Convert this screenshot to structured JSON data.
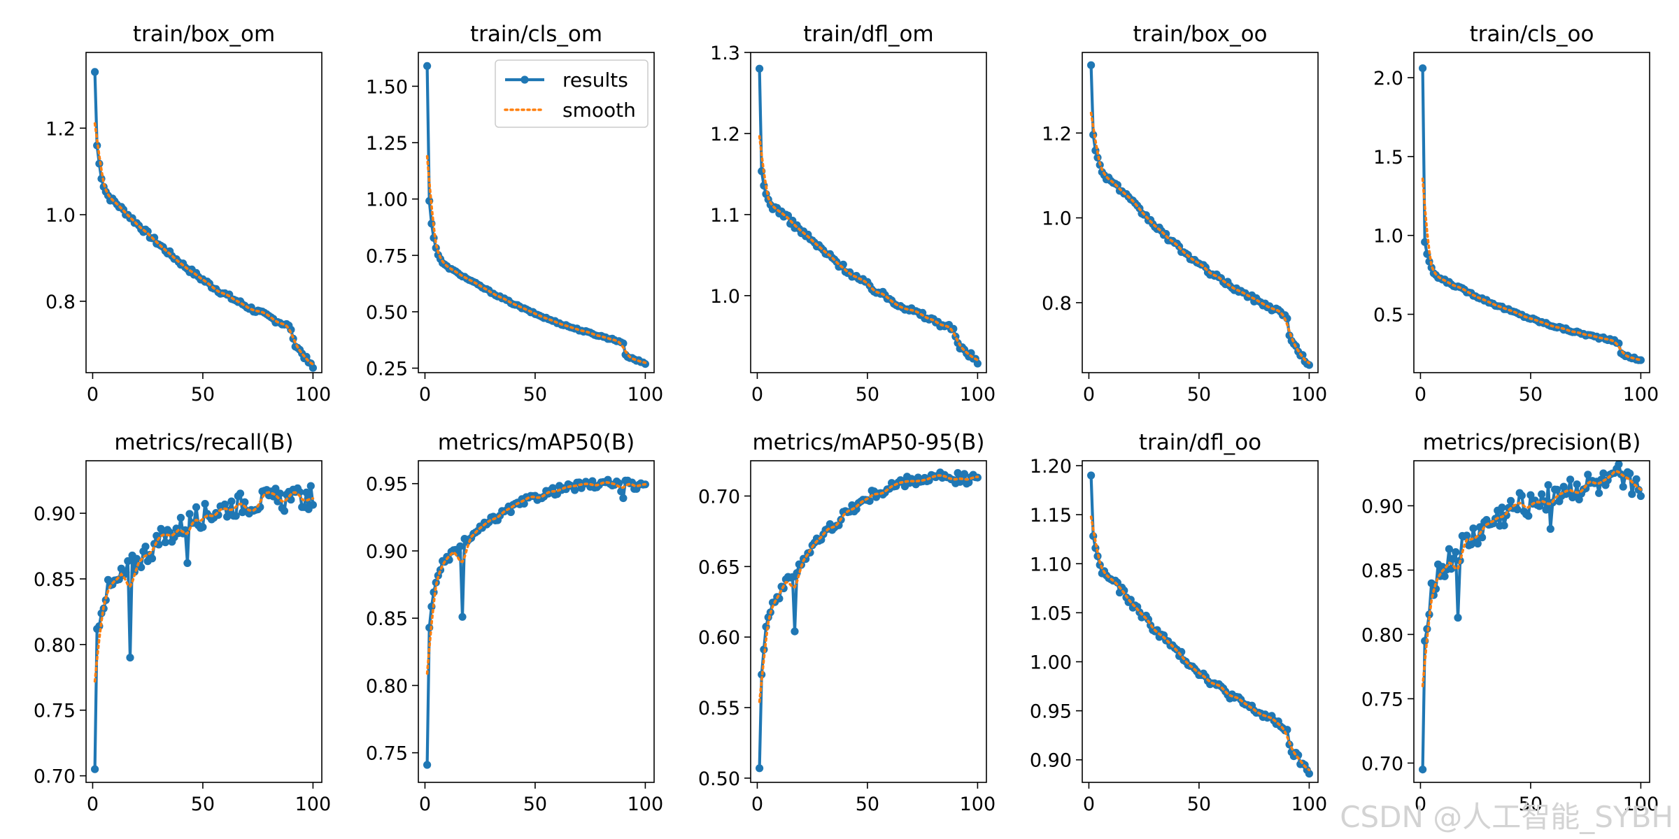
{
  "colors": {
    "results": "#1f77b4",
    "smooth": "#ff7f0e",
    "axes": "#000000",
    "watermark": "#d3d3d3"
  },
  "legend": {
    "results_label": "results",
    "smooth_label": "smooth",
    "placement": "top-right"
  },
  "watermark": "CSDN @人工智能_SYBH",
  "chart_data": [
    {
      "type": "line",
      "title": "train/box_om",
      "xlim": [
        -3,
        104
      ],
      "ylim": [
        0.635,
        1.375
      ],
      "xticks": [
        0,
        50,
        100
      ],
      "yticks": [
        0.8,
        1.0,
        1.2
      ],
      "tick_decimals": 1,
      "start": 1.33,
      "k1": 0.17,
      "tau": 2.5,
      "v10": 1.03,
      "v88": 0.745,
      "v100": 0.645,
      "drop": 0.03,
      "noise": 0.006,
      "series": [
        {
          "name": "results"
        },
        {
          "name": "smooth"
        }
      ]
    },
    {
      "type": "line",
      "title": "train/cls_om",
      "xlim": [
        -3,
        104
      ],
      "ylim": [
        0.23,
        1.65
      ],
      "xticks": [
        0,
        50,
        100
      ],
      "yticks": [
        0.25,
        0.5,
        0.75,
        1.0,
        1.25,
        1.5
      ],
      "tick_decimals": 2,
      "legend": true,
      "start": 1.59,
      "k1": 0.6,
      "tau": 1.0,
      "v10": 0.7,
      "v88": 0.37,
      "v100": 0.27,
      "drop": 0.06,
      "noise": 0.004,
      "series": [
        {
          "name": "results"
        },
        {
          "name": "smooth"
        }
      ]
    },
    {
      "type": "line",
      "title": "train/dfl_om",
      "xlim": [
        -3,
        104
      ],
      "ylim": [
        0.905,
        1.3
      ],
      "xticks": [
        0,
        50,
        100
      ],
      "yticks": [
        1.0,
        1.1,
        1.2,
        1.3
      ],
      "tick_decimals": 1,
      "start": 1.28,
      "k1": 0.13,
      "tau": 1.2,
      "v10": 1.105,
      "v88": 0.96,
      "v100": 0.92,
      "drop": 0.02,
      "noise": 0.004,
      "series": [
        {
          "name": "results"
        },
        {
          "name": "smooth"
        }
      ]
    },
    {
      "type": "line",
      "title": "train/box_oo",
      "xlim": [
        -3,
        104
      ],
      "ylim": [
        0.635,
        1.39
      ],
      "xticks": [
        0,
        50,
        100
      ],
      "yticks": [
        0.8,
        1.0,
        1.2
      ],
      "tick_decimals": 1,
      "start": 1.36,
      "k1": 0.16,
      "tau": 2.0,
      "v10": 1.09,
      "v88": 0.775,
      "v100": 0.65,
      "drop": 0.05,
      "noise": 0.006,
      "series": [
        {
          "name": "results"
        },
        {
          "name": "smooth"
        }
      ]
    },
    {
      "type": "line",
      "title": "train/cls_oo",
      "xlim": [
        -3,
        104
      ],
      "ylim": [
        0.13,
        2.16
      ],
      "xticks": [
        0,
        50,
        100
      ],
      "yticks": [
        0.5,
        1.0,
        1.5,
        2.0
      ],
      "tick_decimals": 1,
      "start": 2.06,
      "k1": 1.1,
      "tau": 1.2,
      "v10": 0.72,
      "v88": 0.33,
      "v100": 0.21,
      "drop": 0.08,
      "noise": 0.008,
      "series": [
        {
          "name": "results"
        },
        {
          "name": "smooth"
        }
      ]
    },
    {
      "type": "line",
      "title": "metrics/recall(B)",
      "xlim": [
        -3,
        104
      ],
      "ylim": [
        0.695,
        0.94
      ],
      "xticks": [
        0,
        50,
        100
      ],
      "yticks": [
        0.7,
        0.75,
        0.8,
        0.85,
        0.9
      ],
      "tick_decimals": 2,
      "start": 0.705,
      "k1": -0.105,
      "tau": 2.5,
      "v10": 0.845,
      "v88": 0.91,
      "v100": 0.912,
      "drop": 0.0,
      "noise": 0.009,
      "dips": [
        {
          "x": 17,
          "y": 0.79
        },
        {
          "x": 43,
          "y": 0.862
        }
      ],
      "series": [
        {
          "name": "results"
        },
        {
          "name": "smooth"
        }
      ]
    },
    {
      "type": "line",
      "title": "metrics/mAP50(B)",
      "xlim": [
        -3,
        104
      ],
      "ylim": [
        0.728,
        0.967
      ],
      "xticks": [
        0,
        50,
        100
      ],
      "yticks": [
        0.75,
        0.8,
        0.85,
        0.9,
        0.95
      ],
      "tick_decimals": 2,
      "start": 0.741,
      "k1": -0.1,
      "tau": 3.0,
      "v10": 0.893,
      "v88": 0.95,
      "v100": 0.947,
      "drop": 0.0,
      "noise": 0.003,
      "dips": [
        {
          "x": 17,
          "y": 0.851
        }
      ],
      "series": [
        {
          "name": "results"
        },
        {
          "name": "smooth"
        }
      ]
    },
    {
      "type": "line",
      "title": "metrics/mAP50-95(B)",
      "xlim": [
        -3,
        104
      ],
      "ylim": [
        0.497,
        0.725
      ],
      "xticks": [
        0,
        50,
        100
      ],
      "yticks": [
        0.5,
        0.55,
        0.6,
        0.65,
        0.7
      ],
      "tick_decimals": 2,
      "start": 0.507,
      "k1": -0.07,
      "tau": 3.0,
      "v10": 0.63,
      "v88": 0.713,
      "v100": 0.712,
      "drop": 0.0,
      "noise": 0.004,
      "dips": [
        {
          "x": 17,
          "y": 0.604
        }
      ],
      "series": [
        {
          "name": "results"
        },
        {
          "name": "smooth"
        }
      ]
    },
    {
      "type": "line",
      "title": "train/dfl_oo",
      "xlim": [
        -3,
        104
      ],
      "ylim": [
        0.877,
        1.205
      ],
      "xticks": [
        0,
        50,
        100
      ],
      "yticks": [
        0.9,
        0.95,
        1.0,
        1.05,
        1.1,
        1.15,
        1.2
      ],
      "tick_decimals": 2,
      "start": 1.19,
      "k1": 0.06,
      "tau": 2.5,
      "v10": 1.085,
      "v88": 0.935,
      "v100": 0.887,
      "drop": 0.02,
      "noise": 0.004,
      "series": [
        {
          "name": "results"
        },
        {
          "name": "smooth"
        }
      ]
    },
    {
      "type": "line",
      "title": "metrics/precision(B)",
      "xlim": [
        -3,
        104
      ],
      "ylim": [
        0.685,
        0.935
      ],
      "xticks": [
        0,
        50,
        100
      ],
      "yticks": [
        0.7,
        0.75,
        0.8,
        0.85,
        0.9
      ],
      "tick_decimals": 2,
      "start": 0.695,
      "k1": -0.1,
      "tau": 2.5,
      "v10": 0.85,
      "v88": 0.915,
      "v100": 0.917,
      "drop": 0.0,
      "noise": 0.011,
      "dips": [
        {
          "x": 17,
          "y": 0.813
        },
        {
          "x": 59,
          "y": 0.882
        }
      ],
      "series": [
        {
          "name": "results"
        },
        {
          "name": "smooth"
        }
      ]
    }
  ]
}
